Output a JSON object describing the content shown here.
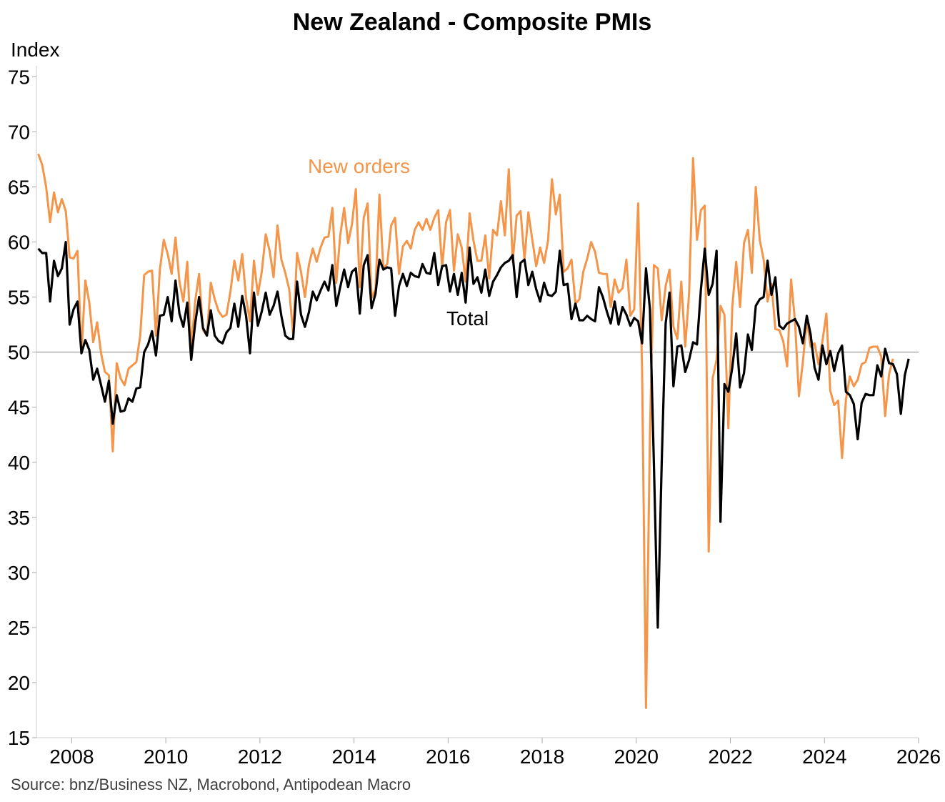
{
  "chart_data": {
    "type": "line",
    "title": "New Zealand - Composite PMIs",
    "ylabel": "Index",
    "xlabel": "",
    "ylim": [
      15,
      76
    ],
    "xlim": [
      2007.25,
      2026
    ],
    "yticks": [
      15,
      20,
      25,
      30,
      35,
      40,
      45,
      50,
      55,
      60,
      65,
      70,
      75
    ],
    "xticks": [
      2008,
      2010,
      2012,
      2014,
      2016,
      2018,
      2020,
      2022,
      2024,
      2026
    ],
    "reference_line": 50,
    "x_start": 2007.29,
    "x_step": 0.0833333,
    "grid": false,
    "legend": "inline annotations",
    "series": [
      {
        "name": "New orders",
        "color": "#f5954a",
        "label_text": "New orders",
        "values": [
          68,
          67,
          65,
          61.8,
          64.5,
          62.7,
          63.9,
          62.8,
          58.6,
          58.5,
          59.2,
          49.9,
          56.5,
          54.5,
          50.9,
          52.7,
          49.9,
          48.2,
          47.9,
          41,
          49,
          47.6,
          47,
          48.5,
          48.8,
          49.1,
          51.5,
          57,
          57.3,
          57.4,
          51.5,
          57.5,
          60.2,
          58.9,
          57.1,
          60.4,
          56.4,
          54.6,
          58.2,
          50.3,
          54.6,
          57.1,
          52,
          51.5,
          56.3,
          54.8,
          53.7,
          53.2,
          53.4,
          55.5,
          58.3,
          56.5,
          58.9,
          54.9,
          52.8,
          58.3,
          55.2,
          57.3,
          60.7,
          59.2,
          56.8,
          61.5,
          58.4,
          57.2,
          55.7,
          51.6,
          59,
          57.3,
          55,
          57.9,
          59.4,
          58.2,
          59.5,
          60.4,
          60.5,
          63.1,
          56.3,
          60.6,
          63.1,
          59.9,
          61.6,
          64.8,
          55.9,
          62.2,
          63.5,
          54.9,
          55.7,
          64.3,
          57.6,
          58,
          61.5,
          62.2,
          57.1,
          59.6,
          60.1,
          59.4,
          61.1,
          61.8,
          61.1,
          62.1,
          61.1,
          62.2,
          62.9,
          57.7,
          61.8,
          62.9,
          57.4,
          60.7,
          59.5,
          56.4,
          62.6,
          60.1,
          58.3,
          58.3,
          60.6,
          56.7,
          61.1,
          60.6,
          63.7,
          60.6,
          66.6,
          58.2,
          62.4,
          62.8,
          58.4,
          62.7,
          60.2,
          57.8,
          59.5,
          58.1,
          60.1,
          65.7,
          62.5,
          64.3,
          57.3,
          57.6,
          58.4,
          54.4,
          54.8,
          57.3,
          58.5,
          60,
          59.1,
          57.2,
          57.1,
          57.1,
          54.1,
          56.6,
          55.4,
          55.8,
          58.4,
          53.3,
          53.9,
          63.5,
          48.5,
          17.7,
          42.6,
          57.9,
          57.6,
          52.9,
          56,
          57.5,
          52.3,
          51.2,
          56.4,
          50.5,
          55.4,
          67.6,
          60.2,
          62.9,
          63.3,
          31.9,
          47.6,
          49.3,
          54.2,
          53.4,
          43.1,
          54.1,
          58.2,
          54.1,
          59.9,
          61.1,
          57.2,
          65,
          60.2,
          58.4,
          54.6,
          56.2,
          52.1,
          52,
          51,
          48.7,
          56.6,
          52.8,
          46,
          49.1,
          53,
          50.5,
          50.8,
          48.9,
          51,
          53.5,
          46.5,
          45.2,
          45.6,
          40.4,
          45.7,
          47.8,
          46.9,
          47.5,
          48.9,
          49.1,
          50.4,
          50.5,
          50.5,
          49.6,
          44.2,
          48,
          49.4
        ]
      },
      {
        "name": "Total",
        "color": "#000000",
        "label_text": "Total",
        "values": [
          59.4,
          59,
          59,
          54.6,
          58.3,
          56.9,
          57.6,
          60,
          52.5,
          53.9,
          54.6,
          49.9,
          51.1,
          50.2,
          47.5,
          48.5,
          47,
          45.5,
          47.4,
          43.5,
          46.1,
          44.6,
          44.7,
          45.8,
          45.5,
          46.7,
          46.8,
          50,
          50.7,
          51.9,
          49.7,
          53.3,
          53.4,
          55,
          52.8,
          56.5,
          53.5,
          52.3,
          54.5,
          49.3,
          52.6,
          55,
          52.2,
          51.5,
          53.8,
          51.5,
          51,
          50.8,
          51.8,
          52.2,
          54.4,
          52.3,
          55.1,
          53.3,
          49.9,
          55.4,
          52.4,
          53.7,
          55.4,
          53.4,
          54.2,
          55.5,
          53.3,
          51.5,
          51.2,
          51.2,
          56.4,
          53.4,
          52.3,
          53.6,
          55.5,
          54.7,
          55.6,
          56.4,
          55.6,
          57.9,
          54.2,
          55.9,
          57.5,
          55.9,
          57.3,
          57.6,
          53.5,
          57.9,
          58.8,
          54,
          55.3,
          58.4,
          57.5,
          57.7,
          57.6,
          53.3,
          56,
          57.1,
          56,
          57.2,
          56.9,
          56.8,
          58,
          57.2,
          57.1,
          59,
          56.1,
          57.8,
          57.9,
          55.5,
          57.1,
          55.2,
          57.2,
          54.5,
          59.5,
          56.2,
          56.8,
          55.4,
          57.5,
          55.1,
          56.4,
          57,
          57.7,
          58.1,
          58.3,
          58.8,
          55,
          58.1,
          58.4,
          56.1,
          57.3,
          55.7,
          54.6,
          56.3,
          55.2,
          55.1,
          55.5,
          59.2,
          56.1,
          56.2,
          53,
          54.4,
          52.9,
          52.9,
          53.3,
          53,
          52.8,
          55.9,
          55,
          53.7,
          52.6,
          54.6,
          52.5,
          54.1,
          53.4,
          52.4,
          53.1,
          52.8,
          50.8,
          57.6,
          53.9,
          40,
          25,
          40,
          52.6,
          55.4,
          46.9,
          50.5,
          50.6,
          48.2,
          49.3,
          50.9,
          50.7,
          55.7,
          59.4,
          55.2,
          56.2,
          59.2,
          34.6,
          47.1,
          46.4,
          48.6,
          51.7,
          46.8,
          48.1,
          51.6,
          50.2,
          54.2,
          54.8,
          55,
          58.3,
          55.2,
          56.8,
          52.4,
          52.1,
          52.6,
          52.8,
          53,
          52.3,
          50.8,
          53.3,
          51.6,
          48.6,
          47.5,
          50.6,
          48.9,
          50.1,
          48.3,
          49.9,
          50.6,
          46.4,
          46.1,
          45.3,
          42.1,
          45.4,
          46.2,
          46.1,
          46.1,
          48.8,
          47.8,
          50.3,
          49,
          48.9,
          48,
          44.4,
          47.9,
          49.4
        ]
      }
    ],
    "source": "Source: bnz/Business NZ, Macrobond, Antipodean Macro"
  }
}
